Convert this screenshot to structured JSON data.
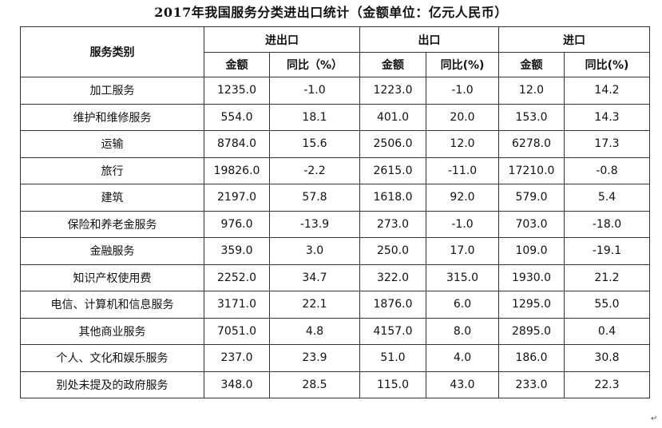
{
  "title": "2017年我国服务分类进出口统计（金额单位：亿元人民币）",
  "table": {
    "category_header": "服务类别",
    "groups": [
      "进出口",
      "出口",
      "进口"
    ],
    "sub_headers": [
      "金额",
      "同比（%）",
      "金额",
      "同比(%)",
      "金额",
      "同比(%)"
    ],
    "rows": [
      {
        "label": "加工服务",
        "cells": [
          "1235.0",
          "-1.0",
          "1223.0",
          "-1.0",
          "12.0",
          "14.2"
        ]
      },
      {
        "label": "维护和维修服务",
        "cells": [
          "554.0",
          "18.1",
          "401.0",
          "20.0",
          "153.0",
          "14.3"
        ]
      },
      {
        "label": "运输",
        "cells": [
          "8784.0",
          "15.6",
          "2506.0",
          "12.0",
          "6278.0",
          "17.3"
        ]
      },
      {
        "label": "旅行",
        "cells": [
          "19826.0",
          "-2.2",
          "2615.0",
          "-11.0",
          "17210.0",
          "-0.8"
        ]
      },
      {
        "label": "建筑",
        "cells": [
          "2197.0",
          "57.8",
          "1618.0",
          "92.0",
          "579.0",
          "5.4"
        ]
      },
      {
        "label": "保险和养老金服务",
        "cells": [
          "976.0",
          "-13.9",
          "273.0",
          "-1.0",
          "703.0",
          "-18.0"
        ]
      },
      {
        "label": "金融服务",
        "cells": [
          "359.0",
          "3.0",
          "250.0",
          "17.0",
          "109.0",
          "-19.1"
        ]
      },
      {
        "label": "知识产权使用费",
        "cells": [
          "2252.0",
          "34.7",
          "322.0",
          "315.0",
          "1930.0",
          "21.2"
        ]
      },
      {
        "label": "电信、计算机和信息服务",
        "cells": [
          "3171.0",
          "22.1",
          "1876.0",
          "6.0",
          "1295.0",
          "55.0"
        ]
      },
      {
        "label": "其他商业服务",
        "cells": [
          "7051.0",
          "4.8",
          "4157.0",
          "8.0",
          "2895.0",
          "0.4"
        ]
      },
      {
        "label": "个人、文化和娱乐服务",
        "cells": [
          "237.0",
          "23.9",
          "51.0",
          "4.0",
          "186.0",
          "30.8"
        ]
      },
      {
        "label": "别处未提及的政府服务",
        "cells": [
          "348.0",
          "28.5",
          "115.0",
          "43.0",
          "233.0",
          "22.3"
        ]
      }
    ]
  },
  "corner_mark": "↵"
}
